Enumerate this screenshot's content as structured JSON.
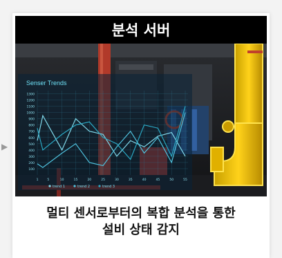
{
  "card": {
    "title": "분석 서버",
    "caption_line1": "멀티 센서로부터의 복합 분석을 통한",
    "caption_line2": "설비 상태 감지"
  },
  "chart_data": {
    "type": "line",
    "title": "Senser Trends",
    "x": [
      1,
      3,
      10,
      15,
      20,
      25,
      30,
      35,
      40,
      45,
      50,
      55
    ],
    "x_ticks": [
      "1",
      "5",
      "10",
      "15",
      "20",
      "25",
      "30",
      "35",
      "40",
      "45",
      "50",
      "55"
    ],
    "y_ticks": [
      "100",
      "200",
      "300",
      "400",
      "500",
      "600",
      "700",
      "800",
      "900",
      "1000",
      "1100",
      "1200",
      "1300"
    ],
    "ylim": [
      0,
      1350
    ],
    "series": [
      {
        "name": "trend 1",
        "color": "#7fd8ea",
        "values": [
          550,
          950,
          400,
          900,
          700,
          650,
          300,
          550,
          450,
          620,
          680,
          300
        ]
      },
      {
        "name": "trend 2",
        "color": "#4fc3df",
        "values": [
          180,
          120,
          350,
          500,
          200,
          150,
          450,
          700,
          350,
          600,
          200,
          1000
        ]
      },
      {
        "name": "trend 3",
        "color": "#2aa8c4",
        "values": [
          750,
          400,
          650,
          800,
          850,
          600,
          500,
          250,
          800,
          750,
          300,
          1100
        ]
      }
    ]
  }
}
